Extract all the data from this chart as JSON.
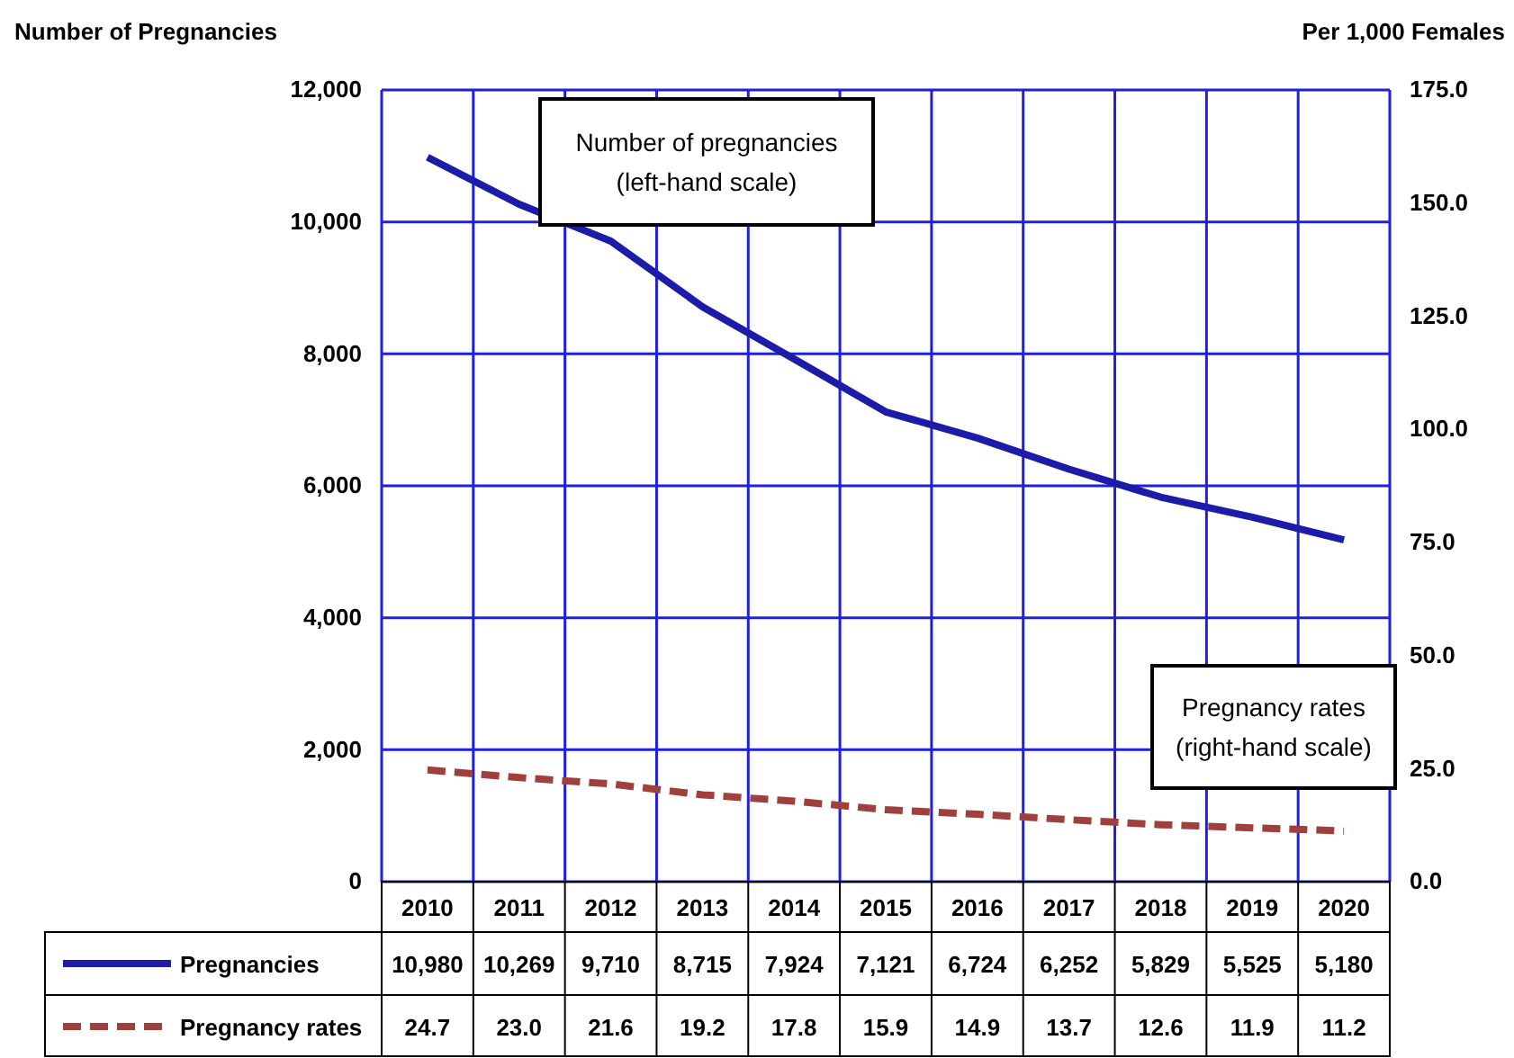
{
  "chart_data": {
    "type": "line",
    "ylabel": "Number of Pregnancies",
    "y2label": "Per 1,000 Females",
    "categories": [
      "2010",
      "2011",
      "2012",
      "2013",
      "2014",
      "2015",
      "2016",
      "2017",
      "2018",
      "2019",
      "2020"
    ],
    "series": [
      {
        "name": "Pregnancies",
        "color": "#1c1ca8",
        "line_style": "solid",
        "values": [
          10980,
          10269,
          9710,
          8715,
          7924,
          7121,
          6724,
          6252,
          5829,
          5525,
          5180
        ],
        "value_labels": [
          "10,980",
          "10,269",
          "9,710",
          "8,715",
          "7,924",
          "7,121",
          "6,724",
          "6,252",
          "5,829",
          "5,525",
          "5,180"
        ]
      },
      {
        "name": "Pregnancy rates",
        "color": "#a0403c",
        "line_style": "dashed",
        "axis": "y2",
        "values": [
          24.7,
          23.0,
          21.6,
          19.2,
          17.8,
          15.9,
          14.9,
          13.7,
          12.6,
          11.9,
          11.2
        ],
        "value_labels": [
          "24.7",
          "23.0",
          "21.6",
          "19.2",
          "17.8",
          "15.9",
          "14.9",
          "13.7",
          "12.6",
          "11.9",
          "11.2"
        ]
      }
    ],
    "ylim": [
      0,
      12000
    ],
    "yticks": [
      {
        "value": 0,
        "label": "0"
      },
      {
        "value": 2000,
        "label": "2,000"
      },
      {
        "value": 4000,
        "label": "4,000"
      },
      {
        "value": 6000,
        "label": "6,000"
      },
      {
        "value": 8000,
        "label": "8,000"
      },
      {
        "value": 10000,
        "label": "10,000"
      },
      {
        "value": 12000,
        "label": "12,000"
      }
    ],
    "y2lim": [
      0,
      175
    ],
    "y2ticks": [
      {
        "value": 0,
        "label": "0.0"
      },
      {
        "value": 25,
        "label": "25.0"
      },
      {
        "value": 50,
        "label": "50.0"
      },
      {
        "value": 75,
        "label": "75.0"
      },
      {
        "value": 100,
        "label": "100.0"
      },
      {
        "value": 125,
        "label": "125.0"
      },
      {
        "value": 150,
        "label": "150.0"
      },
      {
        "value": 175,
        "label": "175.0"
      }
    ],
    "grid": true,
    "legend": "bottom",
    "marker": "none",
    "annotations": [
      "Number of pregnancies\n(left-hand scale)",
      "Pregnancy rates\n(right-hand scale)"
    ]
  }
}
